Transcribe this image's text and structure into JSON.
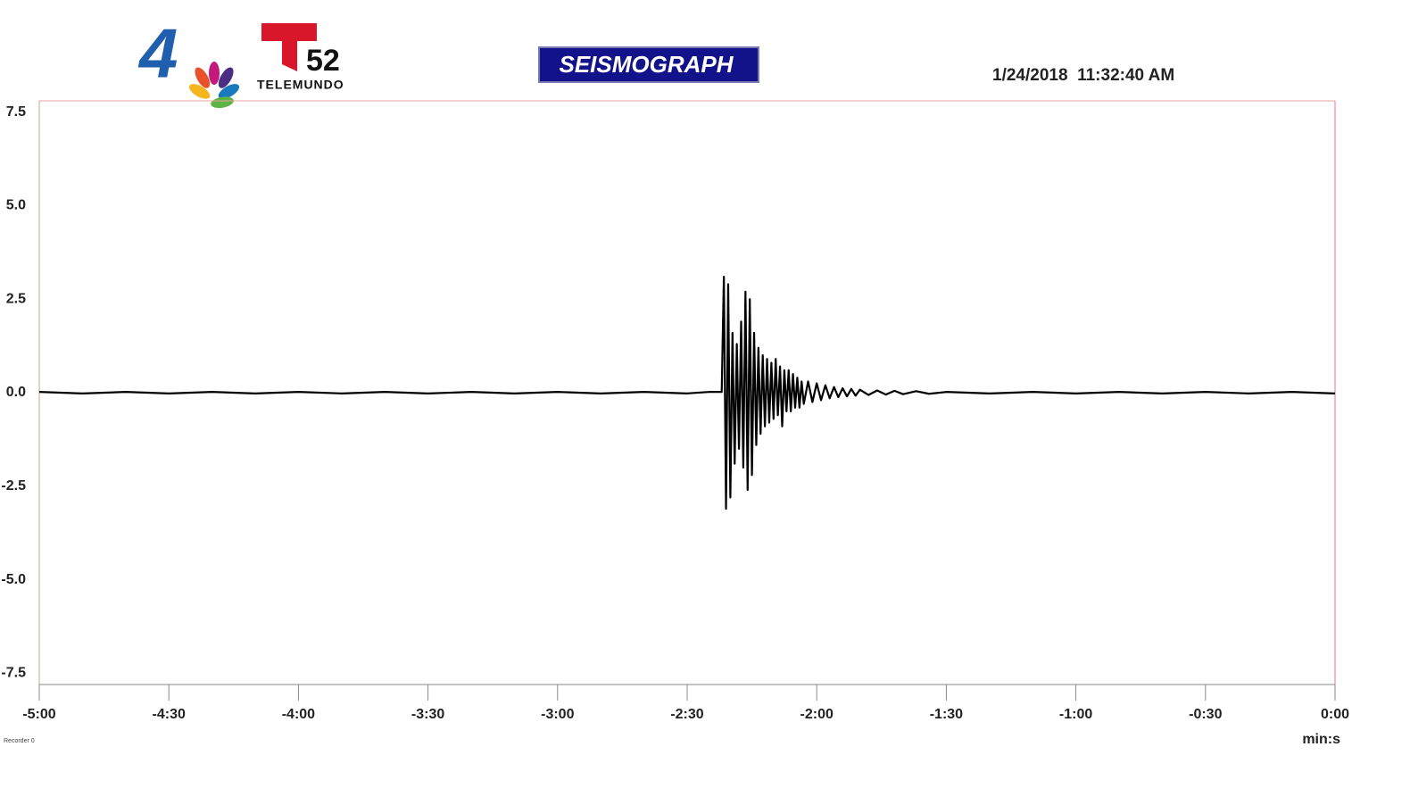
{
  "header": {
    "logo_channel": "4",
    "logo_number": "52",
    "logo_brand": "TELEMUNDO",
    "date_time": "1/24/2018  11:32:40 AM"
  },
  "chart_data": {
    "type": "line",
    "title": "SEISMOGRAPH",
    "x_label": "min:s",
    "recorder_label": "Recorder 0",
    "color": "#000000",
    "grid": false,
    "x": [
      -300,
      -290,
      -280,
      -270,
      -260,
      -250,
      -240,
      -230,
      -220,
      -210,
      -200,
      -190,
      -180,
      -170,
      -160,
      -150,
      -145,
      -142,
      -141.5,
      -141,
      -140.5,
      -140,
      -139.5,
      -139,
      -138.5,
      -138,
      -137.5,
      -137,
      -136.5,
      -136,
      -135.5,
      -135,
      -134.5,
      -134,
      -133.5,
      -133,
      -132.5,
      -132,
      -131.5,
      -131,
      -130.5,
      -130,
      -129.5,
      -129,
      -128.5,
      -128,
      -127.5,
      -127,
      -126.5,
      -126,
      -125.5,
      -125,
      -124.5,
      -124,
      -123.5,
      -123,
      -122,
      -121,
      -120,
      -119,
      -118,
      -117,
      -116,
      -115,
      -114,
      -113,
      -112,
      -111,
      -110,
      -108,
      -106,
      -104,
      -102,
      -100,
      -97,
      -94,
      -90,
      -80,
      -70,
      -60,
      -50,
      -40,
      -30,
      -20,
      -10,
      0
    ],
    "values": [
      0.02,
      -0.02,
      0.02,
      -0.02,
      0.02,
      -0.02,
      0.02,
      -0.02,
      0.02,
      -0.02,
      0.02,
      -0.02,
      0.02,
      -0.02,
      0.02,
      -0.02,
      0.02,
      0.02,
      3.1,
      -3.1,
      2.9,
      -2.8,
      1.6,
      -1.9,
      1.3,
      -1.5,
      1.9,
      -2.0,
      2.7,
      -2.6,
      2.5,
      -2.2,
      1.6,
      -1.4,
      1.2,
      -1.1,
      1.0,
      -0.9,
      0.9,
      -0.8,
      0.8,
      -0.7,
      0.9,
      -0.6,
      0.7,
      -0.9,
      0.6,
      -0.5,
      0.6,
      -0.5,
      0.5,
      -0.4,
      0.4,
      -0.4,
      0.3,
      -0.3,
      0.3,
      -0.25,
      0.25,
      -0.2,
      0.2,
      -0.15,
      0.15,
      -0.12,
      0.12,
      -0.1,
      0.1,
      -0.08,
      0.08,
      -0.06,
      0.06,
      -0.05,
      0.05,
      -0.04,
      0.04,
      -0.03,
      0.02,
      -0.02,
      0.02,
      -0.02,
      0.02,
      -0.02,
      0.02,
      -0.02,
      0.02,
      -0.02
    ],
    "xlim": [
      -300,
      0
    ],
    "xticks": [
      {
        "value": -300,
        "label": "-5:00"
      },
      {
        "value": -270,
        "label": "-4:30"
      },
      {
        "value": -240,
        "label": "-4:00"
      },
      {
        "value": -210,
        "label": "-3:30"
      },
      {
        "value": -180,
        "label": "-3:00"
      },
      {
        "value": -150,
        "label": "-2:30"
      },
      {
        "value": -120,
        "label": "-2:00"
      },
      {
        "value": -90,
        "label": "-1:30"
      },
      {
        "value": -60,
        "label": "-1:00"
      },
      {
        "value": -30,
        "label": "-0:30"
      },
      {
        "value": 0,
        "label": "0:00"
      }
    ],
    "ylim": [
      -7.8,
      7.8
    ],
    "yticks": [
      7.5,
      {
        "value": 5,
        "label": "5.0"
      },
      2.5,
      {
        "value": 0,
        "label": "0.0"
      },
      -2.5,
      {
        "value": -5,
        "label": "-5.0"
      },
      -7.5
    ]
  }
}
